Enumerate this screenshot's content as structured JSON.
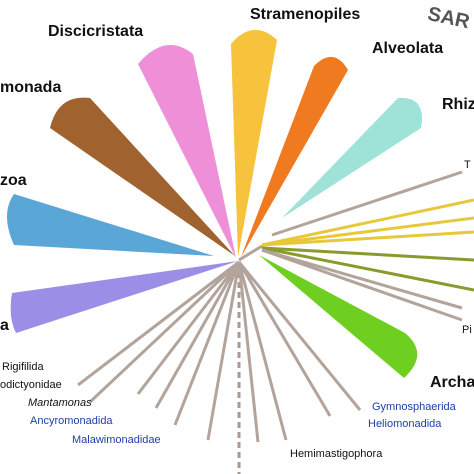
{
  "supergroup_label": "SAR",
  "clades": {
    "discicristata": "Discicristata",
    "stramenopiles": "Stramenopiles",
    "alveolata": "Alveolata",
    "rhizaria": "Rhiz",
    "metamonada": "monada",
    "amoebozoa": "zoa",
    "left_lower": "a",
    "archaeplastida": "Archa"
  },
  "minor_taxa": {
    "rigifilida": "Rigifilida",
    "apusomonadida": "odictyonidae",
    "mantamonas": "Mantamonas",
    "ancyromonadida": "Ancyromonadida",
    "malawimonadidae": "Malawimonadidae",
    "hemimastigophora": "Hemimastigophora",
    "gymnosphaerida": "Gymnosphaerida",
    "heliomonadida": "Heliomonadida",
    "right_top": "T",
    "right_pi": "Pi"
  },
  "colors": {
    "discicristata": "#ee8fd8",
    "stramenopiles": "#f7c23c",
    "alveolata": "#f07a1f",
    "rhizaria": "#9fe3d8",
    "metamonada": "#a0622e",
    "amoebozoa": "#5aa6d6",
    "left_lower": "#9a8ee6",
    "archaeplastida": "#6fcf20",
    "haptista_lines": "#e6c83a",
    "cryptista_lines": "#8a9a2c",
    "branch": "#b2a49b",
    "blue_text": "#1e3fa8"
  }
}
